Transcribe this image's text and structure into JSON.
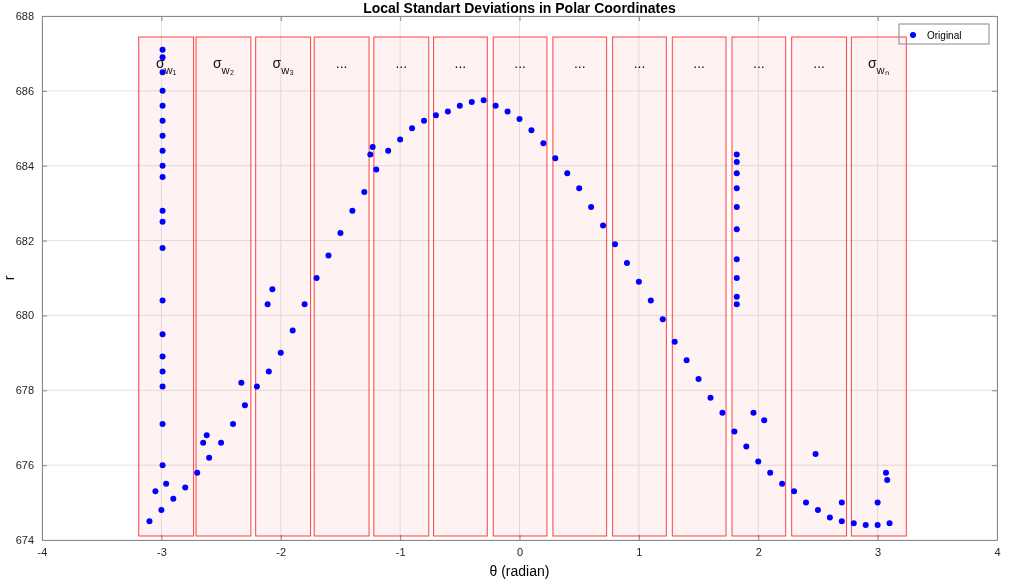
{
  "chart_data": {
    "type": "scatter",
    "title": "Local Standart Deviations in Polar Coordinates",
    "xlabel": "θ (radian)",
    "ylabel": "r",
    "xlim": [
      -4,
      4
    ],
    "xticks": [
      -4,
      -3,
      -2,
      -1,
      0,
      1,
      2,
      3,
      4
    ],
    "ylim": [
      674,
      688
    ],
    "yticks": [
      674,
      676,
      678,
      680,
      682,
      684,
      686,
      688
    ],
    "grid": true,
    "legend": "top right",
    "marker": "circle",
    "bands": [
      {
        "axis": "x",
        "from": -3.19,
        "to": -2.73,
        "label": "σ$_{w₁}$",
        "color": "#ff0000"
      },
      {
        "axis": "x",
        "from": -2.71,
        "to": -2.25,
        "label": "σ$_{w₂}$",
        "color": "#ff0000"
      },
      {
        "axis": "x",
        "from": -2.21,
        "to": -1.75,
        "label": "σ$_{w₃}$",
        "color": "#ff0000"
      },
      {
        "axis": "x",
        "from": -1.72,
        "to": -1.26,
        "label": "...",
        "color": "#ff0000"
      },
      {
        "axis": "x",
        "from": -1.22,
        "to": -0.76,
        "label": "...",
        "color": "#ff0000"
      },
      {
        "axis": "x",
        "from": -0.72,
        "to": -0.27,
        "label": "...",
        "color": "#ff0000"
      },
      {
        "axis": "x",
        "from": -0.22,
        "to": 0.23,
        "label": "...",
        "color": "#ff0000"
      },
      {
        "axis": "x",
        "from": 0.28,
        "to": 0.73,
        "label": "...",
        "color": "#ff0000"
      },
      {
        "axis": "x",
        "from": 0.78,
        "to": 1.23,
        "label": "...",
        "color": "#ff0000"
      },
      {
        "axis": "x",
        "from": 1.28,
        "to": 1.73,
        "label": "...",
        "color": "#ff0000"
      },
      {
        "axis": "x",
        "from": 1.78,
        "to": 2.23,
        "label": "...",
        "color": "#ff0000"
      },
      {
        "axis": "x",
        "from": 2.28,
        "to": 2.74,
        "label": "...",
        "color": "#ff0000"
      },
      {
        "axis": "x",
        "from": 2.78,
        "to": 3.24,
        "label": "σ$_{wₙ}$",
        "color": "#ff0000"
      }
    ],
    "series": [
      {
        "name": "Original",
        "color": "#0000ff",
        "x": [
          -3.1,
          -3.0,
          -2.9,
          -2.8,
          -2.7,
          -2.6,
          -2.5,
          -2.4,
          -2.3,
          -2.2,
          -2.1,
          -2.0,
          -1.9,
          -1.8,
          -1.7,
          -1.6,
          -1.5,
          -1.4,
          -1.3,
          -1.2,
          -1.1,
          -1.0,
          -0.9,
          -0.8,
          -0.7,
          -0.6,
          -0.5,
          -0.4,
          -0.3,
          -0.2,
          -0.1,
          0.0,
          0.1,
          0.2,
          0.3,
          0.4,
          0.5,
          0.6,
          0.7,
          0.8,
          0.9,
          1.0,
          1.1,
          1.2,
          1.3,
          1.4,
          1.5,
          1.6,
          1.7,
          1.8,
          1.9,
          2.0,
          2.1,
          2.2,
          2.3,
          2.4,
          2.5,
          2.6,
          2.7,
          2.8,
          2.9,
          3.0,
          3.1,
          -1.23,
          -1.25,
          -2.07,
          -2.11,
          -2.33,
          -2.62,
          -2.65,
          -2.96,
          -3.05,
          1.96,
          2.05,
          2.48,
          2.7,
          3.07,
          3.08,
          3.0,
          -2.99,
          -2.99,
          -2.99,
          -2.99,
          -2.99,
          -2.99,
          -2.99,
          -2.99,
          -2.99,
          -2.99,
          -2.99,
          -2.99,
          -2.99,
          -2.99,
          -2.99,
          -2.99,
          -2.99,
          -2.99,
          -2.99,
          -2.99,
          1.82,
          1.82,
          1.82,
          1.82,
          1.82,
          1.82,
          1.82,
          1.82,
          1.82,
          1.82
        ],
        "values": [
          674.5,
          674.8,
          675.1,
          675.4,
          675.8,
          676.2,
          676.6,
          677.1,
          677.6,
          678.1,
          678.5,
          679.0,
          679.6,
          680.3,
          681.0,
          681.6,
          682.2,
          682.8,
          683.3,
          683.9,
          684.4,
          684.7,
          685.0,
          685.2,
          685.35,
          685.45,
          685.6,
          685.7,
          685.75,
          685.6,
          685.45,
          685.25,
          684.95,
          684.6,
          684.2,
          683.8,
          683.4,
          682.9,
          682.4,
          681.9,
          681.4,
          680.9,
          680.4,
          679.9,
          679.3,
          678.8,
          678.3,
          677.8,
          677.4,
          676.9,
          676.5,
          676.1,
          675.8,
          675.5,
          675.3,
          675.0,
          674.8,
          674.6,
          674.5,
          674.45,
          674.4,
          674.4,
          674.45,
          684.5,
          684.3,
          680.7,
          680.3,
          678.2,
          676.8,
          676.6,
          675.5,
          675.3,
          677.4,
          677.2,
          676.3,
          675.0,
          675.8,
          675.6,
          675.0,
          687.1,
          686.9,
          686.5,
          686.0,
          685.6,
          685.2,
          684.8,
          684.4,
          684.0,
          683.7,
          682.8,
          682.5,
          681.8,
          680.4,
          679.5,
          678.9,
          678.5,
          678.1,
          677.1,
          676.0,
          684.3,
          684.1,
          683.8,
          683.4,
          682.9,
          682.3,
          681.5,
          681.0,
          680.5,
          680.3
        ]
      }
    ]
  }
}
